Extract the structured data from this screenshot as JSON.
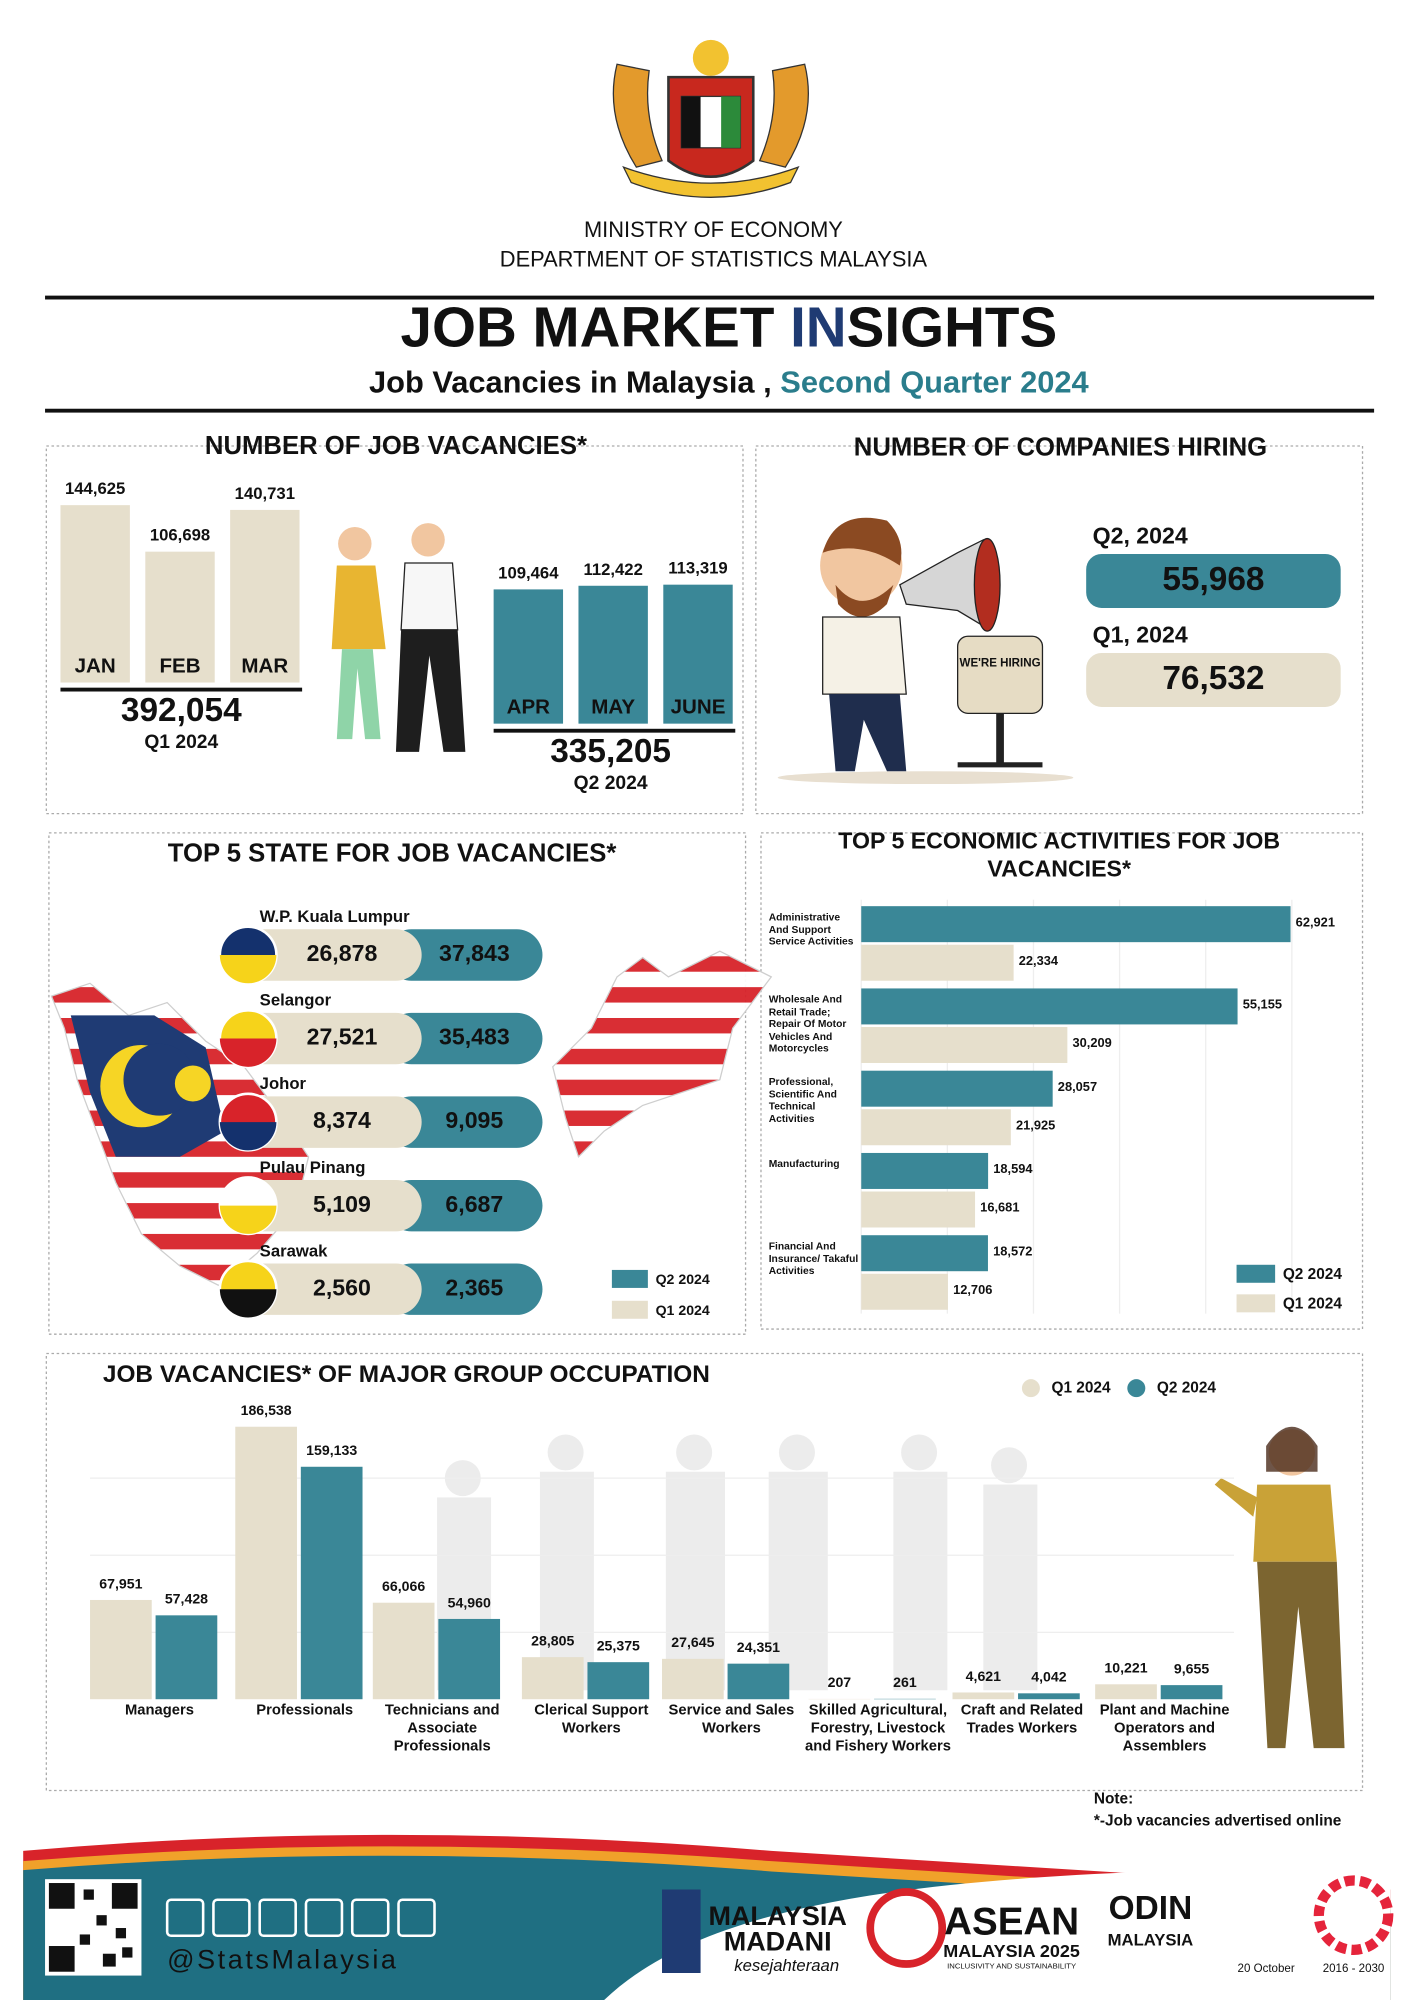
{
  "header": {
    "ministry": "MINISTRY OF ECONOMY",
    "department": "DEPARTMENT OF STATISTICS MALAYSIA",
    "title": [
      "JOB MARKET ",
      "IN",
      "SIGHTS"
    ],
    "subtitle": [
      "Job Vacancies in Malaysia ,",
      "Second Quarter 2024"
    ]
  },
  "chart_data": [
    {
      "type": "bar",
      "title": "NUMBER OF JOB VACANCIES*",
      "series": [
        {
          "name": "Q1 2024",
          "color": "#e6dfcc",
          "categories": [
            "JAN",
            "FEB",
            "MAR"
          ],
          "values": [
            144625,
            106698,
            140731
          ],
          "value_labels": [
            "144,625",
            "106,698",
            "140,731"
          ],
          "total": "392,054"
        },
        {
          "name": "Q2 2024",
          "color": "#3a8797",
          "categories": [
            "APR",
            "MAY",
            "JUNE"
          ],
          "values": [
            109464,
            112422,
            113319
          ],
          "value_labels": [
            "109,464",
            "112,422",
            "113,319"
          ],
          "total": "335,205"
        }
      ]
    },
    {
      "type": "pill",
      "title": "TOP 5 STATE FOR JOB VACANCIES*",
      "categories": [
        "W.P. Kuala Lumpur",
        "Selangor",
        "Johor",
        "Pulau Pinang",
        "Sarawak"
      ],
      "series": [
        {
          "name": "Q2 2024",
          "color": "#3a8797",
          "values": [
            37843,
            35483,
            9095,
            6687,
            2365
          ],
          "value_labels": [
            "37,843",
            "35,483",
            "9,095",
            "6,687",
            "2,365"
          ]
        },
        {
          "name": "Q1 2024",
          "color": "#e6dfcc",
          "values": [
            26878,
            27521,
            8374,
            5109,
            2560
          ],
          "value_labels": [
            "26,878",
            "27,521",
            "8,374",
            "5,109",
            "2,560"
          ]
        }
      ]
    },
    {
      "type": "hbar",
      "title": "TOP 5 ECONOMIC ACTIVITIES FOR JOB VACANCIES*",
      "categories": [
        "Administrative And Support Service Activities",
        "Wholesale And Retail Trade; Repair Of Motor Vehicles And Motorcycles",
        "Professional, Scientific And Technical Activities",
        "Manufacturing",
        "Financial And Insurance/ Takaful Activities"
      ],
      "series": [
        {
          "name": "Q2 2024",
          "color": "#3a8797",
          "values": [
            62921,
            55155,
            28057,
            18594,
            18572
          ],
          "value_labels": [
            "62,921",
            "55,155",
            "28,057",
            "18,594",
            "18,572"
          ]
        },
        {
          "name": "Q1 2024",
          "color": "#e6dfcc",
          "values": [
            22334,
            30209,
            21925,
            16681,
            12706
          ],
          "value_labels": [
            "22,334",
            "30,209",
            "21,925",
            "16,681",
            "12,706"
          ]
        }
      ]
    },
    {
      "type": "grouped-bar",
      "title": "JOB VACANCIES* OF MAJOR GROUP OCCUPATION",
      "categories": [
        "Managers",
        "Professionals",
        "Technicians and Associate Professionals",
        "Clerical Support Workers",
        "Service and Sales Workers",
        "Skilled Agricultural, Forestry, Livestock and Fishery Workers",
        "Craft and Related Trades Workers",
        "Plant and Machine Operators and Assemblers"
      ],
      "series": [
        {
          "name": "Q1 2024",
          "color": "#e6dfcc",
          "values": [
            67951,
            186538,
            66066,
            28805,
            27645,
            207,
            4621,
            10221
          ],
          "value_labels": [
            "67,951",
            "186,538",
            "66,066",
            "28,805",
            "27,645",
            "207",
            "4,621",
            "10,221"
          ]
        },
        {
          "name": "Q2 2024",
          "color": "#3a8797",
          "values": [
            57428,
            159133,
            54960,
            25375,
            24351,
            261,
            4042,
            9655
          ],
          "value_labels": [
            "57,428",
            "159,133",
            "54,960",
            "25,375",
            "24,351",
            "261",
            "4,042",
            "9,655"
          ]
        }
      ]
    }
  ],
  "companies": {
    "title": "NUMBER OF COMPANIES HIRING",
    "sign": "WE'RE HIRING",
    "items": [
      {
        "label": "Q2, 2024",
        "value": "55,968"
      },
      {
        "label": "Q1, 2024",
        "value": "76,532"
      }
    ]
  },
  "note": {
    "title": "Note:",
    "text": "*-Job vacancies advertised online"
  },
  "footer": {
    "handle": "@StatsMalaysia",
    "madani": [
      "MALAYSIA",
      "MADANI",
      "kesejahteraan"
    ],
    "asean": [
      "ASEAN",
      "MALAYSIA 2025",
      "INCLUSIVITY AND SUSTAINABILITY"
    ],
    "odin": [
      "ODIN",
      "MALAYSIA"
    ],
    "dates": [
      "20 October",
      "2016 - 2030"
    ]
  }
}
